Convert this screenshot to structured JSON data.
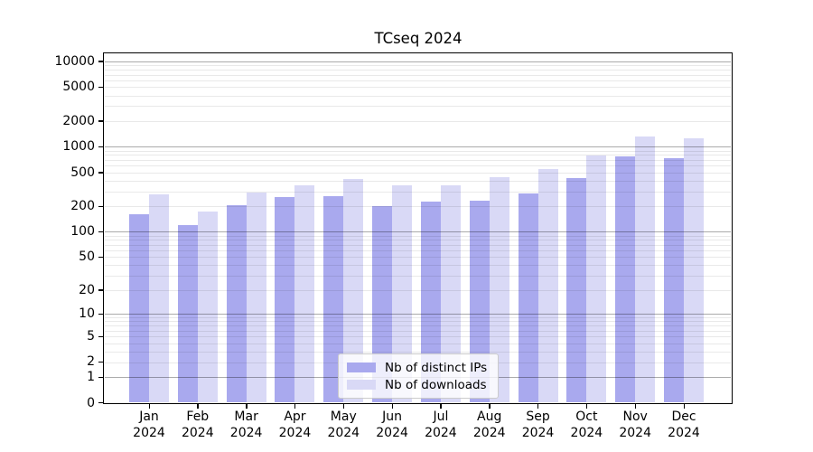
{
  "page": {
    "background": "#ffffff"
  },
  "chart_data": {
    "type": "bar",
    "title": "TCseq 2024",
    "categories": [
      "Jan 2024",
      "Feb 2024",
      "Mar 2024",
      "Apr 2024",
      "May 2024",
      "Jun 2024",
      "Jul 2024",
      "Aug 2024",
      "Sep 2024",
      "Oct 2024",
      "Nov 2024",
      "Dec 2024"
    ],
    "series": [
      {
        "name": "Nb of distinct IPs",
        "color": "#a9a9ee",
        "values": [
          162,
          121,
          206,
          255,
          260,
          201,
          228,
          233,
          281,
          431,
          776,
          733
        ]
      },
      {
        "name": "Nb of downloads",
        "color": "#d9d9f6",
        "values": [
          277,
          171,
          290,
          352,
          420,
          356,
          352,
          439,
          546,
          782,
          1327,
          1246
        ]
      }
    ],
    "y_axis": {
      "scale": "log1p",
      "tick_labels": [
        "10000",
        "5000",
        "2000",
        "1000",
        "500",
        "200",
        "100",
        "50",
        "20",
        "10",
        "5",
        "2",
        "1",
        "0"
      ],
      "ylim": [
        0,
        12000
      ]
    },
    "grid": {
      "major_at": "powers of 10",
      "minor_at": "2-9 per decade"
    },
    "legend": {
      "position": "lower center"
    }
  }
}
